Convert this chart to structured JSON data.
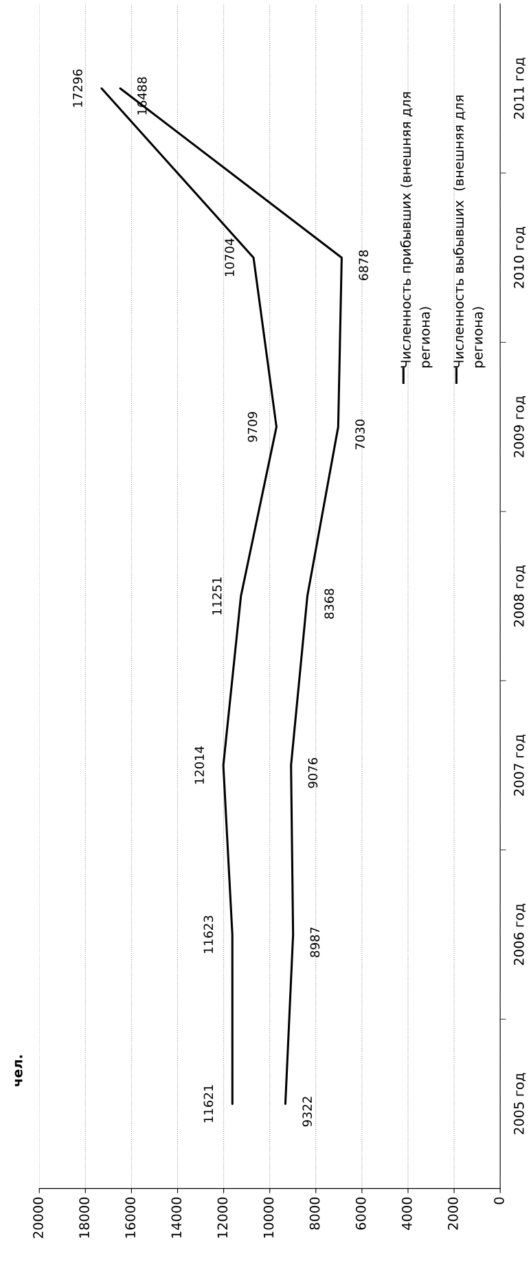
{
  "chart_data": {
    "type": "line",
    "orientation": "horizontal",
    "ylabel": "чел.",
    "categories": [
      "2011 год",
      "2010 год",
      "2009 год",
      "2008 год",
      "2007 год",
      "2006 год",
      "2005 год"
    ],
    "series": [
      {
        "name": "Численность прибывших (внешняя для региона)",
        "color": "#000000",
        "values": [
          17296,
          10704,
          9709,
          11251,
          12014,
          11623,
          11621
        ]
      },
      {
        "name": "Численность выбывших  (внешняя для региона)",
        "color": "#000000",
        "values": [
          16488,
          6878,
          7030,
          8368,
          9076,
          8987,
          9322
        ]
      }
    ],
    "xlim": [
      20000,
      0
    ],
    "xticks": [
      20000,
      18000,
      16000,
      14000,
      12000,
      10000,
      8000,
      6000,
      4000,
      2000,
      0
    ],
    "grid": "x",
    "legend": "top right",
    "data_labels": true,
    "line_style": "solid"
  }
}
